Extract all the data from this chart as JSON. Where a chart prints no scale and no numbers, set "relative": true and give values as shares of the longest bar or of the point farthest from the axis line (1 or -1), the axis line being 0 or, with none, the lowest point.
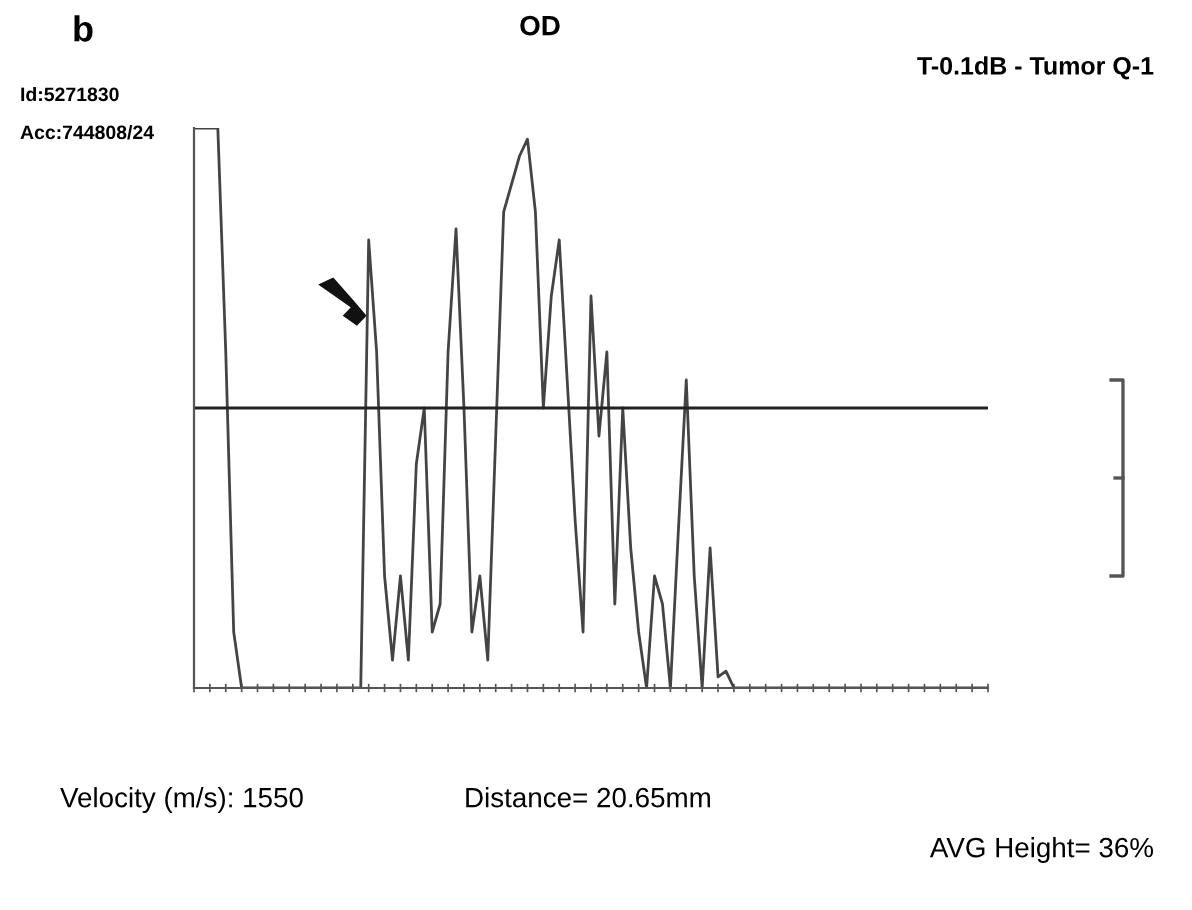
{
  "chart_data": {
    "type": "line",
    "title": "OD",
    "relative": true,
    "categories": [
      null,
      null,
      null,
      null,
      null,
      null,
      null,
      null,
      null,
      null,
      null,
      null,
      null,
      null,
      null,
      null,
      null,
      null,
      null,
      null,
      null,
      null,
      null,
      null,
      null,
      null,
      null,
      null,
      null,
      null,
      null,
      null,
      null,
      null,
      null,
      null,
      null,
      null,
      null,
      null,
      null,
      null,
      null,
      null,
      null,
      null,
      null,
      null,
      null,
      null,
      null,
      null,
      null,
      null,
      null,
      null,
      null,
      null,
      null,
      null,
      null,
      null,
      null,
      null,
      null,
      null,
      null,
      null,
      null,
      null,
      null,
      null,
      null,
      null,
      null,
      null,
      null,
      null,
      null,
      null,
      null,
      null,
      null,
      null,
      null,
      null,
      null,
      null,
      null,
      null,
      null,
      null,
      null,
      null,
      null,
      null,
      null,
      null,
      null,
      null,
      null
    ],
    "series": [
      {
        "color": "#444444",
        "values": [
          1.0,
          1.0,
          1.0,
          1.0,
          0.6,
          0.1,
          0,
          0,
          0,
          0,
          0,
          0,
          0,
          0,
          0,
          0,
          0,
          0,
          0,
          0,
          0,
          0,
          0.8,
          0.6,
          0.2,
          0.05,
          0.2,
          0.05,
          0.4,
          0.5,
          0.1,
          0.15,
          0.6,
          0.82,
          0.5,
          0.1,
          0.2,
          0.05,
          0.45,
          0.85,
          0.9,
          0.95,
          0.98,
          0.85,
          0.5,
          0.7,
          0.8,
          0.55,
          0.3,
          0.1,
          0.7,
          0.45,
          0.6,
          0.15,
          0.5,
          0.25,
          0.1,
          0.0,
          0.2,
          0.15,
          0.0,
          0.28,
          0.55,
          0.2,
          0.0,
          0.25,
          0.02,
          0.03,
          0,
          0,
          0,
          0,
          0,
          0,
          0,
          0,
          0,
          0,
          0,
          0,
          0,
          0,
          0,
          0,
          0,
          0,
          0,
          0,
          0,
          0,
          0,
          0,
          0,
          0,
          0,
          0,
          0,
          0,
          0,
          0,
          0
        ]
      }
    ],
    "ref_lines": [
      {
        "axis": "y",
        "value": 0.5,
        "color": "#222222"
      }
    ],
    "annotations": [
      "b",
      "Id:5271830",
      "Acc:744808/24",
      "T-0.1dB - Tumor Q-1",
      "Velocity (m/s): 1550",
      "Distance= 20.65mm",
      "AVG Height= 36%"
    ],
    "grid": false,
    "legend": false,
    "marker": "none",
    "line_style": "solid"
  }
}
